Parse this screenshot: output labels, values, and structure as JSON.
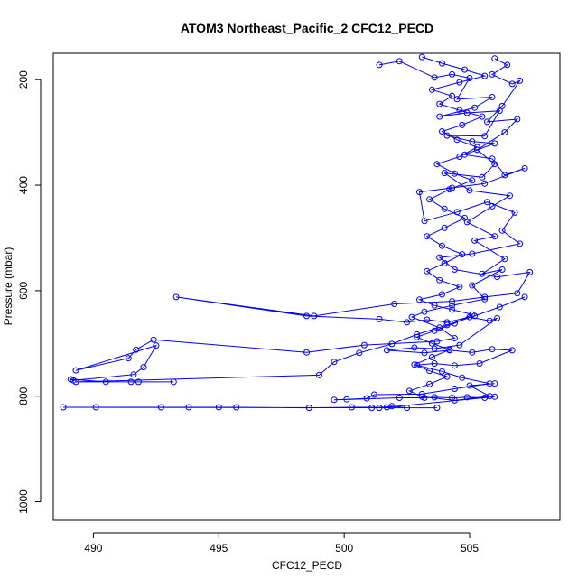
{
  "chart_data": {
    "type": "line",
    "title": "ATOM3 Northeast_Pacific_2 CFC12_PECD",
    "xlabel": "CFC12_PECD",
    "ylabel": "Pressure (mbar)",
    "xlim": [
      488.4,
      508.6
    ],
    "ylim": [
      1035,
      150
    ],
    "y_inverted": true,
    "grid": false,
    "xticks": [
      490,
      495,
      500,
      505
    ],
    "yticks": [
      200,
      400,
      600,
      800,
      1000
    ],
    "series": [
      {
        "color": "#0000ff",
        "marker": "open-circle",
        "points": [
          [
            501.4,
            172
          ],
          [
            502.2,
            165
          ],
          [
            503.6,
            196
          ],
          [
            504.3,
            190
          ],
          [
            505.0,
            197
          ],
          [
            504.5,
            237
          ],
          [
            505.9,
            233
          ],
          [
            505.2,
            253
          ],
          [
            503.8,
            270
          ],
          [
            504.9,
            263
          ],
          [
            506.2,
            259
          ],
          [
            505.6,
            307
          ],
          [
            504.1,
            306
          ],
          [
            505.1,
            317
          ],
          [
            506.0,
            321
          ],
          [
            504.8,
            342
          ],
          [
            505.9,
            350
          ],
          [
            506.4,
            381
          ],
          [
            507.2,
            368
          ],
          [
            505.6,
            397
          ],
          [
            504.3,
            405
          ],
          [
            503.0,
            413
          ],
          [
            503.2,
            468
          ],
          [
            504.5,
            451
          ],
          [
            505.7,
            432
          ],
          [
            506.8,
            452
          ],
          [
            506.3,
            486
          ],
          [
            507.0,
            511
          ],
          [
            505.1,
            530
          ],
          [
            503.8,
            537
          ],
          [
            504.4,
            560
          ],
          [
            506.1,
            574
          ],
          [
            507.4,
            565
          ],
          [
            506.9,
            605
          ],
          [
            505.6,
            612
          ],
          [
            504.3,
            620
          ],
          [
            502.0,
            625
          ],
          [
            498.8,
            648
          ],
          [
            493.3,
            612
          ],
          [
            498.5,
            648
          ],
          [
            501.4,
            654
          ],
          [
            502.5,
            660
          ],
          [
            503.3,
            655
          ],
          [
            504.1,
            660
          ],
          [
            505.0,
            650
          ],
          [
            505.8,
            657
          ],
          [
            506.1,
            652
          ],
          [
            504.6,
            703
          ],
          [
            503.6,
            710
          ],
          [
            502.8,
            708
          ],
          [
            501.7,
            713
          ],
          [
            503.2,
            718
          ],
          [
            504.2,
            713
          ],
          [
            505.1,
            717
          ],
          [
            505.9,
            711
          ],
          [
            506.7,
            713
          ],
          [
            505.4,
            738
          ],
          [
            504.4,
            742
          ],
          [
            503.6,
            738
          ],
          [
            502.9,
            741
          ],
          [
            503.9,
            753
          ],
          [
            504.7,
            765
          ],
          [
            505.8,
            776
          ],
          [
            504.4,
            786
          ],
          [
            503.1,
            796
          ],
          [
            501.2,
            797
          ],
          [
            500.9,
            804
          ],
          [
            500.1,
            806
          ],
          [
            499.6,
            807
          ],
          [
            502.2,
            803
          ],
          [
            503.2,
            803
          ],
          [
            503.6,
            802
          ],
          [
            504.3,
            803
          ],
          [
            504.9,
            802
          ],
          [
            505.6,
            803
          ],
          [
            506.0,
            801
          ],
          [
            501.7,
            821
          ],
          [
            500.3,
            821
          ],
          [
            498.6,
            822
          ],
          [
            495.7,
            821
          ],
          [
            495.0,
            821
          ],
          [
            493.8,
            821
          ],
          [
            492.7,
            821
          ],
          [
            490.1,
            821
          ],
          [
            488.8,
            821
          ],
          [
            503.7,
            822
          ],
          [
            502.5,
            822
          ],
          [
            501.9,
            819
          ],
          [
            501.4,
            822
          ],
          [
            501.1,
            822
          ]
        ]
      },
      {
        "color": "#0000ff",
        "marker": "open-circle",
        "points": [
          [
            506.0,
            160
          ],
          [
            506.5,
            172
          ],
          [
            505.9,
            190
          ],
          [
            506.7,
            208
          ],
          [
            507.0,
            202
          ],
          [
            506.3,
            250
          ],
          [
            505.7,
            280
          ],
          [
            506.9,
            275
          ],
          [
            506.4,
            300
          ],
          [
            505.3,
            333
          ],
          [
            506.0,
            360
          ],
          [
            505.5,
            385
          ],
          [
            504.0,
            377
          ],
          [
            505.0,
            410
          ],
          [
            506.6,
            420
          ],
          [
            505.9,
            440
          ],
          [
            504.9,
            470
          ],
          [
            506.0,
            497
          ],
          [
            505.2,
            505
          ],
          [
            506.4,
            540
          ],
          [
            505.5,
            568
          ],
          [
            506.3,
            560
          ],
          [
            505.1,
            590
          ],
          [
            505.6,
            616
          ],
          [
            504.3,
            628
          ],
          [
            503.2,
            640
          ],
          [
            502.7,
            650
          ],
          [
            503.8,
            670
          ],
          [
            504.4,
            690
          ],
          [
            503.7,
            696
          ],
          [
            500.8,
            703
          ],
          [
            498.5,
            717
          ],
          [
            492.4,
            693
          ],
          [
            491.7,
            712
          ],
          [
            491.4,
            728
          ],
          [
            489.3,
            751
          ],
          [
            492.5,
            704
          ],
          [
            492.0,
            745
          ],
          [
            491.6,
            759
          ],
          [
            489.2,
            770
          ],
          [
            489.1,
            768
          ],
          [
            490.5,
            773
          ],
          [
            491.5,
            773
          ],
          [
            491.8,
            773
          ],
          [
            493.2,
            773
          ],
          [
            489.3,
            773
          ],
          [
            499.0,
            760
          ],
          [
            499.6,
            735
          ],
          [
            500.6,
            718
          ],
          [
            501.9,
            701
          ],
          [
            502.9,
            683
          ],
          [
            504.1,
            665
          ],
          [
            505.2,
            648
          ],
          [
            506.2,
            631
          ],
          [
            507.2,
            612
          ]
        ]
      },
      {
        "color": "#0000ff",
        "marker": "open-circle",
        "points": [
          [
            503.1,
            157
          ],
          [
            503.9,
            169
          ],
          [
            504.8,
            181
          ],
          [
            505.6,
            193
          ],
          [
            504.6,
            205
          ],
          [
            503.5,
            219
          ],
          [
            504.3,
            231
          ],
          [
            503.8,
            246
          ],
          [
            504.6,
            258
          ],
          [
            505.5,
            270
          ],
          [
            504.7,
            286
          ],
          [
            503.9,
            298
          ],
          [
            504.5,
            314
          ],
          [
            505.3,
            328
          ],
          [
            504.6,
            346
          ],
          [
            503.7,
            360
          ],
          [
            504.4,
            378
          ],
          [
            505.1,
            391
          ],
          [
            504.2,
            408
          ],
          [
            503.4,
            427
          ],
          [
            504.0,
            445
          ],
          [
            504.8,
            462
          ],
          [
            504.0,
            481
          ],
          [
            503.3,
            497
          ],
          [
            503.9,
            515
          ],
          [
            504.7,
            531
          ],
          [
            504.0,
            548
          ],
          [
            503.3,
            563
          ],
          [
            503.8,
            580
          ],
          [
            504.6,
            593
          ],
          [
            503.9,
            607
          ],
          [
            503.0,
            617
          ],
          [
            503.6,
            628
          ],
          [
            504.3,
            636
          ],
          [
            505.1,
            645
          ],
          [
            504.4,
            662
          ],
          [
            503.6,
            676
          ],
          [
            502.9,
            688
          ],
          [
            503.5,
            700
          ],
          [
            504.2,
            712
          ],
          [
            503.5,
            726
          ],
          [
            502.8,
            740
          ],
          [
            503.4,
            752
          ],
          [
            504.1,
            763
          ],
          [
            503.4,
            777
          ],
          [
            502.6,
            790
          ],
          [
            503.1,
            801
          ],
          [
            504.4,
            808
          ],
          [
            505.8,
            800
          ],
          [
            505.0,
            780
          ],
          [
            506.0,
            776
          ]
        ]
      }
    ]
  }
}
